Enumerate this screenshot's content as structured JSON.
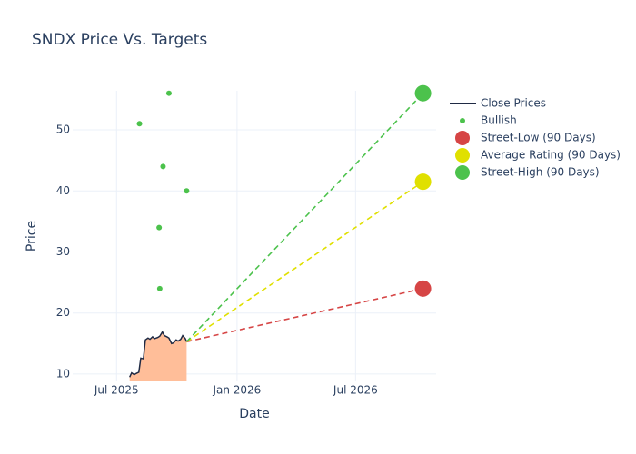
{
  "chart_data": {
    "type": "line",
    "title": "SNDX Price Vs. Targets",
    "x_label": "Date",
    "y_label": "Price",
    "xlim": [
      "2025-04-25",
      "2026-11-01"
    ],
    "ylim": [
      8.8,
      56.4
    ],
    "xticks": [
      {
        "value": "2025-07-01",
        "label": "Jul 2025"
      },
      {
        "value": "2026-01-01",
        "label": "Jan 2026"
      },
      {
        "value": "2026-07-01",
        "label": "Jul 2026"
      }
    ],
    "yticks": [
      10,
      20,
      30,
      40,
      50
    ],
    "grid": true,
    "series": [
      {
        "name": "Close Prices",
        "mode": "line",
        "color": "#1f2a44",
        "fill": "#ffbe99",
        "x": [
          "2025-07-21",
          "2025-07-24",
          "2025-07-28",
          "2025-07-31",
          "2025-08-04",
          "2025-08-07",
          "2025-08-11",
          "2025-08-14",
          "2025-08-18",
          "2025-08-21",
          "2025-08-25",
          "2025-08-28",
          "2025-09-02",
          "2025-09-05",
          "2025-09-09",
          "2025-09-12",
          "2025-09-16",
          "2025-09-19",
          "2025-09-23",
          "2025-09-26",
          "2025-09-30",
          "2025-10-03",
          "2025-10-07",
          "2025-10-10",
          "2025-10-14",
          "2025-10-16"
        ],
        "values": [
          9.5,
          10.2,
          9.9,
          10.1,
          10.3,
          12.6,
          12.5,
          15.6,
          15.9,
          15.7,
          16.1,
          15.8,
          16.0,
          16.2,
          16.9,
          16.3,
          16.1,
          15.9,
          15.0,
          15.1,
          15.6,
          15.4,
          15.7,
          16.3,
          15.8,
          15.3
        ]
      },
      {
        "name": "Bullish",
        "mode": "markers",
        "color": "#4cc24c",
        "x": [
          "2025-08-05",
          "2025-09-04",
          "2025-09-05",
          "2025-09-10",
          "2025-09-19",
          "2025-10-16"
        ],
        "values": [
          51,
          34,
          24,
          44,
          56,
          40
        ]
      },
      {
        "name": "Street-Low (90 Days)",
        "mode": "target",
        "color": "#d64545",
        "x": [
          "2026-10-12"
        ],
        "values": [
          24
        ]
      },
      {
        "name": "Average Rating (90 Days)",
        "mode": "target",
        "color": "#e0e000",
        "x": [
          "2026-10-12"
        ],
        "values": [
          41.5
        ]
      },
      {
        "name": "Street-High (90 Days)",
        "mode": "target",
        "color": "#4cc24c",
        "x": [
          "2026-10-12"
        ],
        "values": [
          56
        ]
      }
    ]
  }
}
